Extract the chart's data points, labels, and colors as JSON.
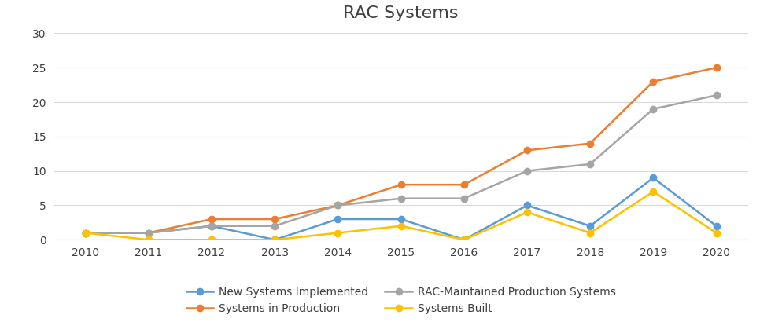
{
  "title": "RAC Systems",
  "years": [
    2010,
    2011,
    2012,
    2013,
    2014,
    2015,
    2016,
    2017,
    2018,
    2019,
    2020
  ],
  "series_order": [
    "New Systems Implemented",
    "Systems in Production",
    "RAC-Maintained Production Systems",
    "Systems Built"
  ],
  "series": {
    "New Systems Implemented": {
      "values": [
        1,
        1,
        2,
        0,
        3,
        3,
        0,
        5,
        2,
        9,
        2
      ],
      "color": "#5B9BD5",
      "marker": "o"
    },
    "Systems in Production": {
      "values": [
        1,
        1,
        3,
        3,
        5,
        8,
        8,
        13,
        14,
        23,
        25
      ],
      "color": "#ED7D31",
      "marker": "o"
    },
    "RAC-Maintained Production Systems": {
      "values": [
        1,
        1,
        2,
        2,
        5,
        6,
        6,
        10,
        11,
        19,
        21
      ],
      "color": "#A5A5A5",
      "marker": "o"
    },
    "Systems Built": {
      "values": [
        1,
        0,
        0,
        0,
        1,
        2,
        0,
        4,
        1,
        7,
        1
      ],
      "color": "#FFC000",
      "marker": "o"
    }
  },
  "ylim": [
    0,
    30
  ],
  "yticks": [
    0,
    5,
    10,
    15,
    20,
    25,
    30
  ],
  "background_color": "#ffffff",
  "grid_color": "#d9d9d9",
  "title_fontsize": 16,
  "legend_fontsize": 10,
  "tick_fontsize": 10,
  "legend_order": [
    "New Systems Implemented",
    "Systems in Production",
    "RAC-Maintained Production Systems",
    "Systems Built"
  ]
}
